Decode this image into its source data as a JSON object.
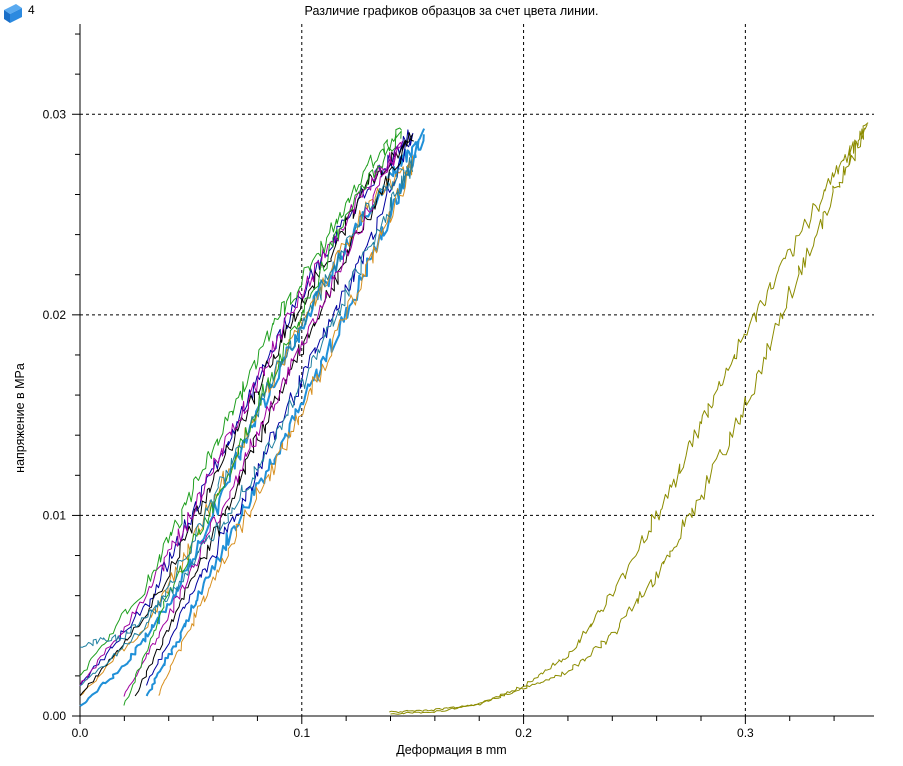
{
  "badge": {
    "icon": "blue-cube-icon",
    "count": "4"
  },
  "chart_data": {
    "type": "line",
    "title": "Различие графиков образцов за счет цвета линии.",
    "xlabel": "Деформация в mm",
    "ylabel": "напряжение в MPa",
    "xlim": [
      0,
      0.358
    ],
    "ylim": [
      0,
      0.0345
    ],
    "x_ticks": [
      0.0,
      0.1,
      0.2,
      0.3
    ],
    "x_tick_labels": [
      "0.0",
      "0.1",
      "0.2",
      "0.3"
    ],
    "y_ticks": [
      0.0,
      0.01,
      0.02,
      0.03
    ],
    "y_tick_labels": [
      "0.00",
      "0.01",
      "0.02",
      "0.03"
    ],
    "grid": true,
    "grid_style": "dashed",
    "legend": "none",
    "series": [
      {
        "color": "#2090D8",
        "width": 2,
        "loading": [
          [
            0.03,
            0.001
          ],
          [
            0.045,
            0.004
          ],
          [
            0.06,
            0.0075
          ],
          [
            0.08,
            0.0115
          ],
          [
            0.1,
            0.0155
          ],
          [
            0.12,
            0.02
          ],
          [
            0.14,
            0.025
          ],
          [
            0.155,
            0.029
          ]
        ],
        "unloading": [
          [
            0.155,
            0.029
          ],
          [
            0.14,
            0.027
          ],
          [
            0.12,
            0.0235
          ],
          [
            0.1,
            0.0195
          ],
          [
            0.08,
            0.015
          ],
          [
            0.06,
            0.01
          ],
          [
            0.04,
            0.0055
          ],
          [
            0.02,
            0.0025
          ],
          [
            0.0,
            0.0005
          ]
        ]
      },
      {
        "color": "#D89020",
        "width": 1,
        "loading": [
          [
            0.035,
            0.001
          ],
          [
            0.05,
            0.0045
          ],
          [
            0.07,
            0.009
          ],
          [
            0.09,
            0.013
          ],
          [
            0.11,
            0.0175
          ],
          [
            0.13,
            0.0225
          ],
          [
            0.15,
            0.0275
          ]
        ],
        "unloading": [
          [
            0.15,
            0.0275
          ],
          [
            0.13,
            0.0255
          ],
          [
            0.11,
            0.0215
          ],
          [
            0.09,
            0.0175
          ],
          [
            0.07,
            0.013
          ],
          [
            0.05,
            0.0085
          ],
          [
            0.03,
            0.0045
          ],
          [
            0.0,
            0.001
          ]
        ]
      },
      {
        "color": "#0000A0",
        "width": 1,
        "loading": [
          [
            0.03,
            0.0015
          ],
          [
            0.05,
            0.006
          ],
          [
            0.07,
            0.01
          ],
          [
            0.09,
            0.0145
          ],
          [
            0.11,
            0.019
          ],
          [
            0.13,
            0.0235
          ],
          [
            0.15,
            0.029
          ]
        ],
        "unloading": [
          [
            0.15,
            0.029
          ],
          [
            0.13,
            0.0265
          ],
          [
            0.11,
            0.023
          ],
          [
            0.09,
            0.019
          ],
          [
            0.07,
            0.0145
          ],
          [
            0.05,
            0.01
          ],
          [
            0.03,
            0.0055
          ],
          [
            0.0,
            0.0015
          ]
        ]
      },
      {
        "color": "#000000",
        "width": 1,
        "loading": [
          [
            0.025,
            0.001
          ],
          [
            0.045,
            0.0055
          ],
          [
            0.065,
            0.01
          ],
          [
            0.085,
            0.015
          ],
          [
            0.105,
            0.0195
          ],
          [
            0.125,
            0.024
          ],
          [
            0.15,
            0.029
          ]
        ],
        "unloading": [
          [
            0.15,
            0.029
          ],
          [
            0.13,
            0.0265
          ],
          [
            0.11,
            0.0225
          ],
          [
            0.09,
            0.0185
          ],
          [
            0.07,
            0.014
          ],
          [
            0.05,
            0.0095
          ],
          [
            0.03,
            0.005
          ],
          [
            0.0,
            0.001
          ]
        ]
      },
      {
        "color": "#A000A0",
        "width": 1,
        "loading": [
          [
            0.02,
            0.001
          ],
          [
            0.04,
            0.005
          ],
          [
            0.06,
            0.0095
          ],
          [
            0.08,
            0.014
          ],
          [
            0.1,
            0.0185
          ],
          [
            0.12,
            0.023
          ],
          [
            0.145,
            0.0285
          ]
        ],
        "unloading": [
          [
            0.145,
            0.0285
          ],
          [
            0.13,
            0.0265
          ],
          [
            0.11,
            0.023
          ],
          [
            0.09,
            0.019
          ],
          [
            0.07,
            0.0145
          ],
          [
            0.05,
            0.01
          ],
          [
            0.03,
            0.006
          ],
          [
            0.0,
            0.0015
          ]
        ]
      },
      {
        "color": "#20A020",
        "width": 1,
        "loading": [
          [
            0.02,
            0.0005
          ],
          [
            0.04,
            0.006
          ],
          [
            0.06,
            0.0105
          ],
          [
            0.08,
            0.0155
          ],
          [
            0.1,
            0.02
          ],
          [
            0.12,
            0.025
          ],
          [
            0.145,
            0.0292
          ]
        ],
        "unloading": [
          [
            0.145,
            0.0292
          ],
          [
            0.13,
            0.0275
          ],
          [
            0.11,
            0.0235
          ],
          [
            0.09,
            0.02
          ],
          [
            0.07,
            0.0155
          ],
          [
            0.05,
            0.011
          ],
          [
            0.03,
            0.0065
          ],
          [
            0.0,
            0.002
          ]
        ]
      },
      {
        "color": "#2080A0",
        "width": 1,
        "loading": [
          [
            0.0,
            0.0035
          ],
          [
            0.02,
            0.004
          ],
          [
            0.04,
            0.006
          ],
          [
            0.06,
            0.009
          ],
          [
            0.08,
            0.0125
          ],
          [
            0.1,
            0.0165
          ],
          [
            0.12,
            0.021
          ],
          [
            0.14,
            0.0255
          ],
          [
            0.15,
            0.0275
          ]
        ],
        "unloading": [
          [
            0.15,
            0.0275
          ],
          [
            0.13,
            0.0255
          ],
          [
            0.11,
            0.0215
          ],
          [
            0.09,
            0.0175
          ],
          [
            0.07,
            0.013
          ],
          [
            0.05,
            0.0085
          ],
          [
            0.03,
            0.0045
          ],
          [
            0.0,
            0.0015
          ]
        ]
      },
      {
        "color": "#8C8C00",
        "width": 1,
        "loading": [
          [
            0.14,
            0.0002
          ],
          [
            0.16,
            0.0003
          ],
          [
            0.18,
            0.0006
          ],
          [
            0.2,
            0.0015
          ],
          [
            0.22,
            0.003
          ],
          [
            0.24,
            0.006
          ],
          [
            0.26,
            0.01
          ],
          [
            0.28,
            0.0145
          ],
          [
            0.3,
            0.019
          ],
          [
            0.32,
            0.023
          ],
          [
            0.34,
            0.027
          ],
          [
            0.355,
            0.0295
          ]
        ],
        "unloading": [
          [
            0.355,
            0.0295
          ],
          [
            0.34,
            0.026
          ],
          [
            0.32,
            0.021
          ],
          [
            0.3,
            0.0155
          ],
          [
            0.28,
            0.011
          ],
          [
            0.26,
            0.007
          ],
          [
            0.24,
            0.004
          ],
          [
            0.22,
            0.0022
          ],
          [
            0.2,
            0.0014
          ],
          [
            0.18,
            0.0006
          ],
          [
            0.16,
            0.0002
          ],
          [
            0.14,
            0.0001
          ]
        ]
      }
    ]
  }
}
